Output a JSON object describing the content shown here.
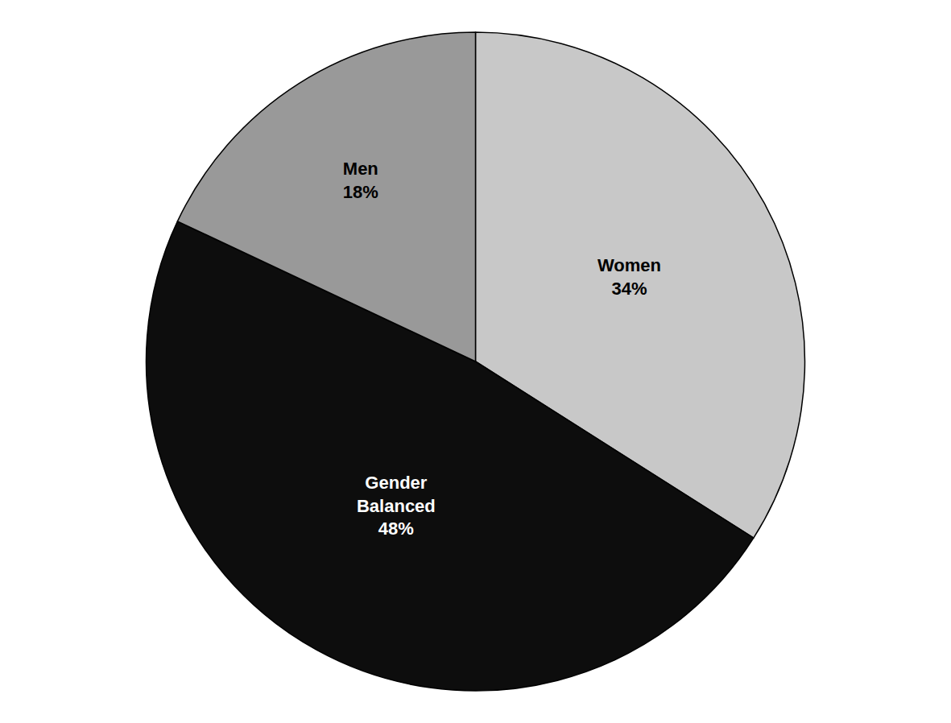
{
  "chart_data": {
    "type": "pie",
    "values": [
      34,
      48,
      18
    ],
    "value_labels": [
      "Women\n34%",
      "Gender\nBalanced\n48%",
      "Men\n18%"
    ],
    "colors": [
      "#c8c8c8",
      "#0d0d0d",
      "#999999"
    ],
    "data_labels": true,
    "legend": false
  }
}
